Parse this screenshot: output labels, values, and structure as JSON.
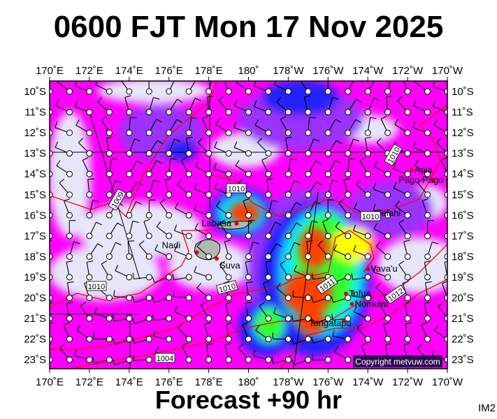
{
  "title": "0600 FJT Mon 17 Nov 2025",
  "footer": "Forecast +90 hr",
  "product_code": "IM2",
  "copyright": "Copyright metvuw.com",
  "map": {
    "lon_labels": [
      "170˚E",
      "172˚E",
      "174˚E",
      "176˚E",
      "178˚E",
      "180˚",
      "178˚W",
      "176˚W",
      "174˚W",
      "172˚W",
      "170˚W"
    ],
    "lat_labels": [
      "10˚S",
      "11˚S",
      "12˚S",
      "13˚S",
      "14˚S",
      "15˚S",
      "16˚S",
      "17˚S",
      "18˚S",
      "19˚S",
      "20˚S",
      "21˚S",
      "22˚S",
      "23˚S"
    ],
    "places": [
      {
        "name": "Apia",
        "lon": -171.8,
        "lat": -13.8
      },
      {
        "name": "Pago Pago",
        "lon": -170.7,
        "lat": -14.3
      },
      {
        "name": "Tafahi",
        "lon": -173.7,
        "lat": -15.9
      },
      {
        "name": "Labasa",
        "lon": 179.4,
        "lat": -16.4
      },
      {
        "name": "Nadi",
        "lon": 177.4,
        "lat": -17.8
      },
      {
        "name": "Suva",
        "lon": 178.4,
        "lat": -18.1
      },
      {
        "name": "Vava'u",
        "lon": -174.0,
        "lat": -18.6
      },
      {
        "name": "Tofua",
        "lon": -175.1,
        "lat": -19.8
      },
      {
        "name": "Nomuka",
        "lon": -174.8,
        "lat": -20.3
      },
      {
        "name": "Tongatapu",
        "lon": -175.2,
        "lat": -21.1
      }
    ],
    "isobar_labels": [
      "1010",
      "1009",
      "1010",
      "1010",
      "1010",
      "1011",
      "1012",
      "1010",
      "1004"
    ],
    "colors": {
      "low": "#e6e6fa",
      "magenta": "#ff00ff",
      "violet": "#9b30ff",
      "blue": "#2020ff",
      "cyan": "#00e5ff",
      "green": "#33ff33",
      "yellow": "#ffff00",
      "red": "#ff4000",
      "isobar": "#ff0000"
    }
  }
}
